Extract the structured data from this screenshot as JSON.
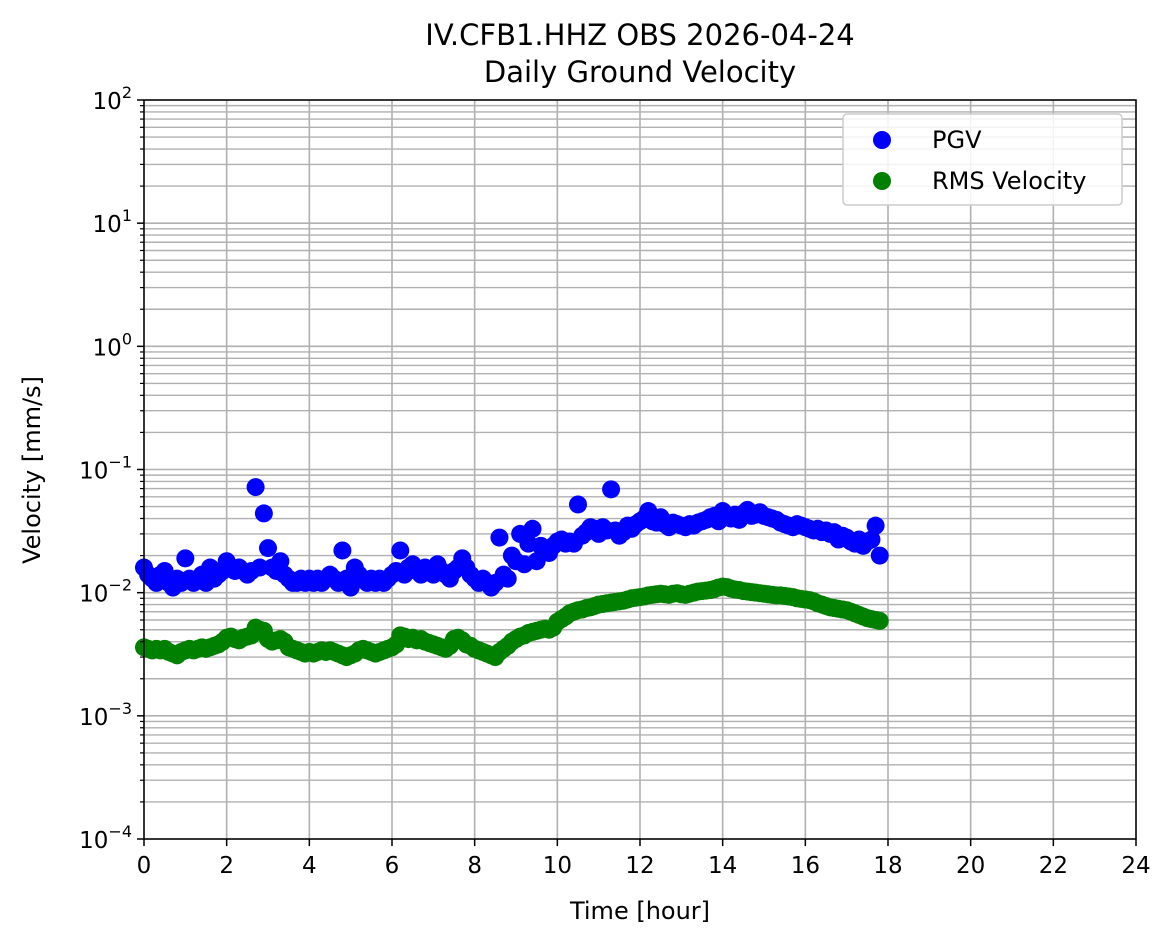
{
  "chart_data": {
    "type": "scatter",
    "title": "IV.CFB1.HHZ OBS 2026-04-24",
    "subtitle": "Daily Ground Velocity",
    "xlabel": "Time [hour]",
    "ylabel": "Velocity [mm/s]",
    "xlim": [
      0,
      24
    ],
    "ylim": [
      0.0001,
      100
    ],
    "yscale": "log",
    "grid": true,
    "legend_position": "top-right",
    "x_ticks": [
      "0",
      "2",
      "4",
      "6",
      "8",
      "10",
      "12",
      "14",
      "16",
      "18",
      "20",
      "22",
      "24"
    ],
    "y_ticks": [
      {
        "base": "10",
        "exp": "−4",
        "value": 0.0001
      },
      {
        "base": "10",
        "exp": "−3",
        "value": 0.001
      },
      {
        "base": "10",
        "exp": "−2",
        "value": 0.01
      },
      {
        "base": "10",
        "exp": "−1",
        "value": 0.1
      },
      {
        "base": "10",
        "exp": "0",
        "value": 1
      },
      {
        "base": "10",
        "exp": "1",
        "value": 10
      },
      {
        "base": "10",
        "exp": "2",
        "value": 100
      }
    ],
    "series": [
      {
        "name": "PGV",
        "color": "#0000ff",
        "x": [
          0.0,
          0.1,
          0.2,
          0.3,
          0.4,
          0.5,
          0.6,
          0.7,
          0.8,
          0.9,
          1.0,
          1.1,
          1.2,
          1.3,
          1.4,
          1.5,
          1.6,
          1.7,
          1.8,
          1.9,
          2.0,
          2.1,
          2.2,
          2.3,
          2.4,
          2.5,
          2.6,
          2.7,
          2.8,
          2.9,
          3.0,
          3.1,
          3.2,
          3.3,
          3.4,
          3.5,
          3.6,
          3.7,
          3.8,
          3.9,
          4.0,
          4.1,
          4.2,
          4.3,
          4.4,
          4.5,
          4.6,
          4.7,
          4.8,
          4.9,
          5.0,
          5.1,
          5.2,
          5.3,
          5.4,
          5.5,
          5.6,
          5.7,
          5.8,
          5.9,
          6.0,
          6.1,
          6.2,
          6.3,
          6.4,
          6.5,
          6.6,
          6.7,
          6.8,
          6.9,
          7.0,
          7.1,
          7.2,
          7.3,
          7.4,
          7.5,
          7.6,
          7.7,
          7.8,
          7.9,
          8.0,
          8.1,
          8.2,
          8.3,
          8.4,
          8.5,
          8.6,
          8.7,
          8.8,
          8.9,
          9.0,
          9.1,
          9.2,
          9.3,
          9.4,
          9.5,
          9.6,
          9.7,
          9.8,
          9.9,
          10.0,
          10.1,
          10.2,
          10.3,
          10.4,
          10.5,
          10.6,
          10.7,
          10.8,
          10.9,
          11.0,
          11.1,
          11.2,
          11.3,
          11.4,
          11.5,
          11.6,
          11.7,
          11.8,
          11.9,
          12.0,
          12.1,
          12.2,
          12.3,
          12.4,
          12.5,
          12.6,
          12.7,
          12.8,
          12.9,
          13.0,
          13.1,
          13.2,
          13.3,
          13.4,
          13.5,
          13.6,
          13.7,
          13.8,
          13.9,
          14.0,
          14.1,
          14.2,
          14.3,
          14.4,
          14.5,
          14.6,
          14.7,
          14.8,
          14.9,
          15.0,
          15.1,
          15.2,
          15.3,
          15.4,
          15.5,
          15.6,
          15.7,
          15.8,
          15.9,
          16.0,
          16.1,
          16.2,
          16.3,
          16.4,
          16.5,
          16.6,
          16.7,
          16.8,
          16.9,
          17.0,
          17.1,
          17.2,
          17.3,
          17.4,
          17.5,
          17.6,
          17.7,
          17.8
        ],
        "values": [
          0.016,
          0.014,
          0.013,
          0.012,
          0.014,
          0.015,
          0.012,
          0.011,
          0.013,
          0.012,
          0.019,
          0.013,
          0.012,
          0.013,
          0.014,
          0.012,
          0.016,
          0.013,
          0.014,
          0.015,
          0.018,
          0.016,
          0.015,
          0.016,
          0.015,
          0.014,
          0.015,
          0.072,
          0.016,
          0.044,
          0.023,
          0.016,
          0.015,
          0.018,
          0.014,
          0.013,
          0.012,
          0.012,
          0.013,
          0.012,
          0.013,
          0.012,
          0.013,
          0.012,
          0.013,
          0.014,
          0.013,
          0.012,
          0.022,
          0.013,
          0.011,
          0.016,
          0.014,
          0.013,
          0.012,
          0.013,
          0.012,
          0.013,
          0.012,
          0.013,
          0.014,
          0.015,
          0.022,
          0.014,
          0.016,
          0.017,
          0.015,
          0.014,
          0.016,
          0.015,
          0.014,
          0.017,
          0.015,
          0.014,
          0.013,
          0.015,
          0.016,
          0.019,
          0.016,
          0.014,
          0.013,
          0.012,
          0.013,
          0.012,
          0.011,
          0.012,
          0.028,
          0.014,
          0.013,
          0.02,
          0.018,
          0.03,
          0.017,
          0.025,
          0.033,
          0.018,
          0.024,
          0.022,
          0.021,
          0.024,
          0.026,
          0.027,
          0.025,
          0.026,
          0.025,
          0.052,
          0.029,
          0.031,
          0.034,
          0.033,
          0.03,
          0.034,
          0.032,
          0.069,
          0.032,
          0.029,
          0.031,
          0.035,
          0.033,
          0.036,
          0.038,
          0.04,
          0.046,
          0.038,
          0.037,
          0.041,
          0.036,
          0.034,
          0.037,
          0.036,
          0.035,
          0.034,
          0.036,
          0.035,
          0.037,
          0.038,
          0.039,
          0.041,
          0.042,
          0.038,
          0.046,
          0.041,
          0.04,
          0.043,
          0.039,
          0.044,
          0.047,
          0.042,
          0.043,
          0.045,
          0.042,
          0.041,
          0.04,
          0.039,
          0.037,
          0.036,
          0.035,
          0.034,
          0.036,
          0.035,
          0.034,
          0.033,
          0.032,
          0.033,
          0.031,
          0.032,
          0.03,
          0.031,
          0.027,
          0.029,
          0.028,
          0.026,
          0.025,
          0.027,
          0.024,
          0.026,
          0.027,
          0.035,
          0.02
        ]
      },
      {
        "name": "RMS Velocity",
        "color": "#008000",
        "x": [
          0.0,
          0.1,
          0.2,
          0.3,
          0.4,
          0.5,
          0.6,
          0.7,
          0.8,
          0.9,
          1.0,
          1.1,
          1.2,
          1.3,
          1.4,
          1.5,
          1.6,
          1.7,
          1.8,
          1.9,
          2.0,
          2.1,
          2.2,
          2.3,
          2.4,
          2.5,
          2.6,
          2.7,
          2.8,
          2.9,
          3.0,
          3.1,
          3.2,
          3.3,
          3.4,
          3.5,
          3.6,
          3.7,
          3.8,
          3.9,
          4.0,
          4.1,
          4.2,
          4.3,
          4.4,
          4.5,
          4.6,
          4.7,
          4.8,
          4.9,
          5.0,
          5.1,
          5.2,
          5.3,
          5.4,
          5.5,
          5.6,
          5.7,
          5.8,
          5.9,
          6.0,
          6.1,
          6.2,
          6.3,
          6.4,
          6.5,
          6.6,
          6.7,
          6.8,
          6.9,
          7.0,
          7.1,
          7.2,
          7.3,
          7.4,
          7.5,
          7.6,
          7.7,
          7.8,
          7.9,
          8.0,
          8.1,
          8.2,
          8.3,
          8.4,
          8.5,
          8.6,
          8.7,
          8.8,
          8.9,
          9.0,
          9.1,
          9.2,
          9.3,
          9.4,
          9.5,
          9.6,
          9.7,
          9.8,
          9.9,
          10.0,
          10.1,
          10.2,
          10.3,
          10.4,
          10.5,
          10.6,
          10.7,
          10.8,
          10.9,
          11.0,
          11.1,
          11.2,
          11.3,
          11.4,
          11.5,
          11.6,
          11.7,
          11.8,
          11.9,
          12.0,
          12.1,
          12.2,
          12.3,
          12.4,
          12.5,
          12.6,
          12.7,
          12.8,
          12.9,
          13.0,
          13.1,
          13.2,
          13.3,
          13.4,
          13.5,
          13.6,
          13.7,
          13.8,
          13.9,
          14.0,
          14.1,
          14.2,
          14.3,
          14.4,
          14.5,
          14.6,
          14.7,
          14.8,
          14.9,
          15.0,
          15.1,
          15.2,
          15.3,
          15.4,
          15.5,
          15.6,
          15.7,
          15.8,
          15.9,
          16.0,
          16.1,
          16.2,
          16.3,
          16.4,
          16.5,
          16.6,
          16.7,
          16.8,
          16.9,
          17.0,
          17.1,
          17.2,
          17.3,
          17.4,
          17.5,
          17.6,
          17.7,
          17.8
        ],
        "values": [
          0.0036,
          0.0035,
          0.0034,
          0.0035,
          0.0034,
          0.0035,
          0.0033,
          0.0032,
          0.0031,
          0.0033,
          0.0034,
          0.0035,
          0.0034,
          0.0035,
          0.0036,
          0.0035,
          0.0036,
          0.0037,
          0.0038,
          0.004,
          0.0043,
          0.0044,
          0.0042,
          0.0041,
          0.0043,
          0.0044,
          0.0045,
          0.0052,
          0.005,
          0.0049,
          0.0042,
          0.004,
          0.0041,
          0.0042,
          0.004,
          0.0036,
          0.0035,
          0.0034,
          0.0033,
          0.0032,
          0.0033,
          0.0032,
          0.0033,
          0.0034,
          0.0033,
          0.0034,
          0.0033,
          0.0032,
          0.0031,
          0.003,
          0.0031,
          0.0032,
          0.0034,
          0.0035,
          0.0034,
          0.0033,
          0.0032,
          0.0033,
          0.0034,
          0.0035,
          0.0036,
          0.0038,
          0.0045,
          0.0044,
          0.0042,
          0.0043,
          0.0041,
          0.0042,
          0.004,
          0.0039,
          0.0038,
          0.0037,
          0.0036,
          0.0035,
          0.0037,
          0.0042,
          0.0043,
          0.0041,
          0.0038,
          0.0037,
          0.0035,
          0.0034,
          0.0033,
          0.0032,
          0.0031,
          0.003,
          0.0033,
          0.0035,
          0.0037,
          0.004,
          0.0042,
          0.0044,
          0.0045,
          0.0047,
          0.0048,
          0.0049,
          0.005,
          0.0051,
          0.005,
          0.0052,
          0.0058,
          0.0061,
          0.0064,
          0.0068,
          0.007,
          0.0072,
          0.0073,
          0.0075,
          0.0076,
          0.0078,
          0.008,
          0.0081,
          0.0082,
          0.0083,
          0.0084,
          0.0085,
          0.0086,
          0.0088,
          0.009,
          0.0091,
          0.0092,
          0.0093,
          0.0095,
          0.0096,
          0.0097,
          0.0098,
          0.0097,
          0.0096,
          0.0098,
          0.0099,
          0.0097,
          0.0096,
          0.0098,
          0.01,
          0.0102,
          0.0103,
          0.0104,
          0.0105,
          0.0107,
          0.011,
          0.0112,
          0.0111,
          0.0108,
          0.0106,
          0.0105,
          0.0103,
          0.0102,
          0.0101,
          0.01,
          0.0099,
          0.0098,
          0.0097,
          0.0096,
          0.0095,
          0.0095,
          0.0094,
          0.0093,
          0.0092,
          0.009,
          0.0089,
          0.0088,
          0.0087,
          0.0085,
          0.0082,
          0.008,
          0.0078,
          0.0076,
          0.0075,
          0.0074,
          0.0073,
          0.0072,
          0.007,
          0.0068,
          0.0066,
          0.0064,
          0.0062,
          0.0061,
          0.006,
          0.0059
        ]
      }
    ]
  }
}
